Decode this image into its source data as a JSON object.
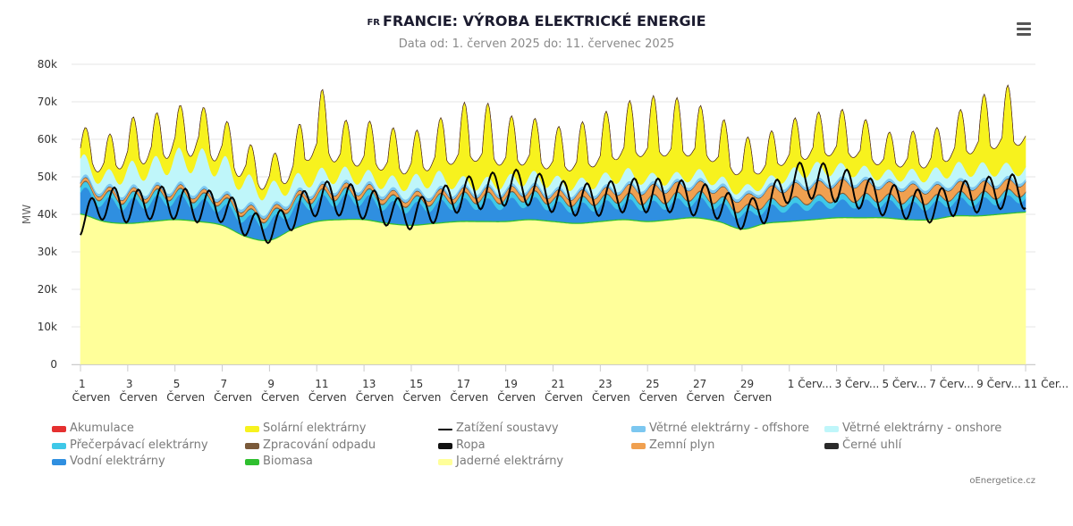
{
  "title": {
    "prefix": "FR",
    "text": "FRANCIE: VÝROBA ELEKTRICKÉ ENERGIE"
  },
  "subtitle": "Data od: 1. červen 2025 do: 11. červenec 2025",
  "menu_icon": "hamburger-menu-icon",
  "credits": "oEnergetice.cz",
  "chart_data": {
    "type": "area",
    "ylabel": "MW",
    "ylim": [
      0,
      80000
    ],
    "yticks": [
      "0",
      "10k",
      "20k",
      "30k",
      "40k",
      "50k",
      "60k",
      "70k",
      "80k"
    ],
    "x_range_days": [
      "1. červen 2025",
      "11. červenec 2025"
    ],
    "xticks": [
      {
        "day": 1,
        "label": "1",
        "sub": "Červen"
      },
      {
        "day": 3,
        "label": "3",
        "sub": "Červen"
      },
      {
        "day": 5,
        "label": "5",
        "sub": "Červen"
      },
      {
        "day": 7,
        "label": "7",
        "sub": "Červen"
      },
      {
        "day": 9,
        "label": "9",
        "sub": "Červen"
      },
      {
        "day": 11,
        "label": "11",
        "sub": "Červen"
      },
      {
        "day": 13,
        "label": "13",
        "sub": "Červen"
      },
      {
        "day": 15,
        "label": "15",
        "sub": "Červen"
      },
      {
        "day": 17,
        "label": "17",
        "sub": "Červen"
      },
      {
        "day": 19,
        "label": "19",
        "sub": "Červen"
      },
      {
        "day": 21,
        "label": "21",
        "sub": "Červen"
      },
      {
        "day": 23,
        "label": "23",
        "sub": "Červen"
      },
      {
        "day": 25,
        "label": "25",
        "sub": "Červen"
      },
      {
        "day": 27,
        "label": "27",
        "sub": "Červen"
      },
      {
        "day": 29,
        "label": "29",
        "sub": "Červen"
      },
      {
        "day": 31,
        "label": "1 Červ...",
        "sub": ""
      },
      {
        "day": 33,
        "label": "3 Červ...",
        "sub": ""
      },
      {
        "day": 35,
        "label": "5 Červ...",
        "sub": ""
      },
      {
        "day": 37,
        "label": "7 Červ...",
        "sub": ""
      },
      {
        "day": 39,
        "label": "9 Červ...",
        "sub": ""
      },
      {
        "day": 41,
        "label": "11 Čer...",
        "sub": ""
      }
    ],
    "x_days": [
      1,
      2,
      3,
      4,
      5,
      6,
      7,
      8,
      9,
      10,
      11,
      12,
      13,
      14,
      15,
      16,
      17,
      18,
      19,
      20,
      21,
      22,
      23,
      24,
      25,
      26,
      27,
      28,
      29,
      30,
      31,
      32,
      33,
      34,
      35,
      36,
      37,
      38,
      39,
      40,
      41
    ],
    "series": [
      {
        "name": "Jaderné elektrárny",
        "color": "#ffff9a",
        "values": [
          40000,
          38000,
          37500,
          38000,
          38500,
          38000,
          37000,
          34000,
          33000,
          36000,
          38000,
          38500,
          38500,
          37500,
          37000,
          37500,
          38000,
          38000,
          38000,
          38500,
          38000,
          37500,
          38000,
          38500,
          38000,
          38500,
          39000,
          38000,
          36000,
          37500,
          38000,
          38500,
          39000,
          39000,
          39000,
          38500,
          38500,
          39500,
          39500,
          40000,
          40500
        ]
      },
      {
        "name": "Biomasa",
        "color": "#2fbf2f",
        "values": [
          300,
          300,
          300,
          300,
          300,
          300,
          300,
          300,
          300,
          300,
          300,
          300,
          300,
          300,
          300,
          300,
          300,
          300,
          300,
          300,
          300,
          300,
          300,
          300,
          300,
          300,
          300,
          300,
          300,
          300,
          300,
          300,
          300,
          300,
          300,
          300,
          300,
          300,
          300,
          300,
          300
        ]
      },
      {
        "name": "Vodní elektrárny",
        "color": "#2f8fe0",
        "values": [
          5500,
          5000,
          5000,
          5000,
          5000,
          4500,
          4500,
          4500,
          4500,
          5000,
          5000,
          5000,
          5000,
          4500,
          4500,
          4500,
          4500,
          4500,
          4500,
          4500,
          4000,
          4000,
          4000,
          4000,
          4000,
          4000,
          4000,
          4000,
          3500,
          3500,
          3500,
          3500,
          3500,
          3500,
          3500,
          3500,
          3500,
          3500,
          3500,
          3500,
          3500
        ]
      },
      {
        "name": "Přečerpávací elektrárny",
        "color": "#3fc8e8",
        "values": [
          1500,
          1500,
          1500,
          1500,
          1500,
          1500,
          1500,
          1500,
          1500,
          1500,
          1500,
          1500,
          1500,
          1500,
          1500,
          1500,
          1500,
          1500,
          1500,
          1500,
          1500,
          1500,
          1500,
          1500,
          1500,
          1500,
          1500,
          1500,
          1500,
          1500,
          1500,
          1500,
          1500,
          1500,
          1500,
          1500,
          1500,
          1500,
          1500,
          1500,
          1500
        ]
      },
      {
        "name": "Zpracování odpadu",
        "color": "#7a5a3a",
        "values": [
          300,
          300,
          300,
          300,
          300,
          300,
          300,
          300,
          300,
          300,
          300,
          300,
          300,
          300,
          300,
          300,
          300,
          300,
          300,
          300,
          300,
          300,
          300,
          300,
          300,
          300,
          300,
          300,
          300,
          300,
          300,
          300,
          300,
          300,
          300,
          300,
          300,
          300,
          300,
          300,
          300
        ]
      },
      {
        "name": "Zemní plyn",
        "color": "#f0a050",
        "values": [
          800,
          800,
          800,
          800,
          800,
          800,
          800,
          800,
          800,
          800,
          1000,
          1000,
          1000,
          1000,
          1000,
          1000,
          1000,
          1200,
          1200,
          1200,
          1200,
          1500,
          1500,
          2000,
          2500,
          2500,
          2500,
          2500,
          2500,
          3000,
          3500,
          3500,
          3500,
          3500,
          3000,
          3000,
          2500,
          2500,
          2500,
          2500,
          2500
        ]
      },
      {
        "name": "Ropa",
        "color": "#111111",
        "values": [
          100,
          100,
          100,
          100,
          100,
          100,
          100,
          100,
          100,
          100,
          100,
          100,
          100,
          100,
          100,
          100,
          100,
          100,
          100,
          100,
          100,
          100,
          100,
          100,
          100,
          100,
          100,
          100,
          100,
          100,
          100,
          100,
          100,
          100,
          100,
          100,
          100,
          100,
          100,
          100,
          100
        ]
      },
      {
        "name": "Větrné elektrárny - offshore",
        "color": "#7cc7f0",
        "values": [
          800,
          800,
          800,
          800,
          800,
          800,
          800,
          800,
          800,
          800,
          800,
          800,
          800,
          800,
          800,
          800,
          800,
          800,
          800,
          800,
          800,
          800,
          800,
          800,
          800,
          800,
          800,
          800,
          800,
          800,
          800,
          800,
          800,
          800,
          800,
          800,
          800,
          800,
          800,
          800,
          800
        ]
      },
      {
        "name": "Větrné elektrárny - onshore",
        "color": "#bff6fa",
        "values": [
          4500,
          3000,
          5000,
          5500,
          7000,
          8000,
          7500,
          6000,
          5000,
          3500,
          3000,
          3000,
          2500,
          2500,
          3000,
          3500,
          2000,
          1500,
          2000,
          2500,
          2500,
          2000,
          2500,
          3000,
          2000,
          1500,
          2000,
          1500,
          1500,
          1500,
          2500,
          3500,
          3000,
          2500,
          2000,
          2500,
          3000,
          3500,
          3500,
          3000,
          2500
        ]
      },
      {
        "name": "Solární elektrárny",
        "color": "#f7f21e",
        "values": [
          5000,
          6000,
          8000,
          8000,
          8000,
          8000,
          7000,
          6000,
          5000,
          7000,
          15000,
          9000,
          9000,
          9000,
          8000,
          9000,
          13000,
          14000,
          11000,
          10000,
          9000,
          10000,
          11000,
          12000,
          14000,
          14000,
          12000,
          11000,
          9000,
          8000,
          9000,
          9000,
          10000,
          9000,
          7000,
          7000,
          7000,
          9000,
          12000,
          14000,
          15000
        ]
      },
      {
        "name": "Akumulace",
        "color": "#e53030",
        "values": [
          0,
          0,
          0,
          0,
          0,
          0,
          0,
          0,
          0,
          0,
          0,
          0,
          0,
          0,
          0,
          0,
          0,
          0,
          0,
          0,
          0,
          0,
          0,
          0,
          0,
          0,
          0,
          0,
          0,
          0,
          0,
          0,
          0,
          0,
          0,
          0,
          0,
          0,
          0,
          0,
          0
        ]
      },
      {
        "name": "Černé uhlí",
        "color": "#2a2a2a",
        "values": [
          0,
          0,
          0,
          0,
          0,
          0,
          0,
          0,
          0,
          0,
          0,
          0,
          0,
          0,
          0,
          0,
          0,
          0,
          0,
          0,
          0,
          0,
          0,
          0,
          0,
          0,
          0,
          0,
          0,
          0,
          0,
          0,
          0,
          0,
          0,
          0,
          0,
          0,
          0,
          0,
          0
        ]
      }
    ],
    "load_line": {
      "name": "Zatížení soustavy",
      "color": "#000000",
      "values": [
        38000,
        43000,
        42000,
        43000,
        43000,
        42000,
        42000,
        38000,
        36000,
        40000,
        44000,
        44000,
        43000,
        41000,
        40000,
        42000,
        45000,
        46000,
        47000,
        47000,
        45000,
        44000,
        44000,
        45000,
        45000,
        45000,
        44000,
        43000,
        40000,
        42000,
        48000,
        49000,
        48000,
        46000,
        44000,
        43000,
        42000,
        44000,
        45000,
        46000,
        46000
      ]
    },
    "legend": [
      {
        "name": "Akumulace",
        "color": "#e53030",
        "kind": "area"
      },
      {
        "name": "Solární elektrárny",
        "color": "#f7f21e",
        "kind": "area"
      },
      {
        "name": "Zatížení soustavy",
        "color": "#000000",
        "kind": "line"
      },
      {
        "name": "Větrné elektrárny - offshore",
        "color": "#7cc7f0",
        "kind": "area"
      },
      {
        "name": "Větrné elektrárny - onshore",
        "color": "#bff6fa",
        "kind": "area"
      },
      {
        "name": "Přečerpávací elektrárny",
        "color": "#3fc8e8",
        "kind": "area"
      },
      {
        "name": "Zpracování odpadu",
        "color": "#7a5a3a",
        "kind": "area"
      },
      {
        "name": "Ropa",
        "color": "#111111",
        "kind": "area"
      },
      {
        "name": "Zemní plyn",
        "color": "#f0a050",
        "kind": "area"
      },
      {
        "name": "Černé uhlí",
        "color": "#2a2a2a",
        "kind": "area"
      },
      {
        "name": "Vodní elektrárny",
        "color": "#2f8fe0",
        "kind": "area"
      },
      {
        "name": "Biomasa",
        "color": "#2fbf2f",
        "kind": "area"
      },
      {
        "name": "Jaderné elektrárny",
        "color": "#ffff9a",
        "kind": "area"
      }
    ]
  }
}
